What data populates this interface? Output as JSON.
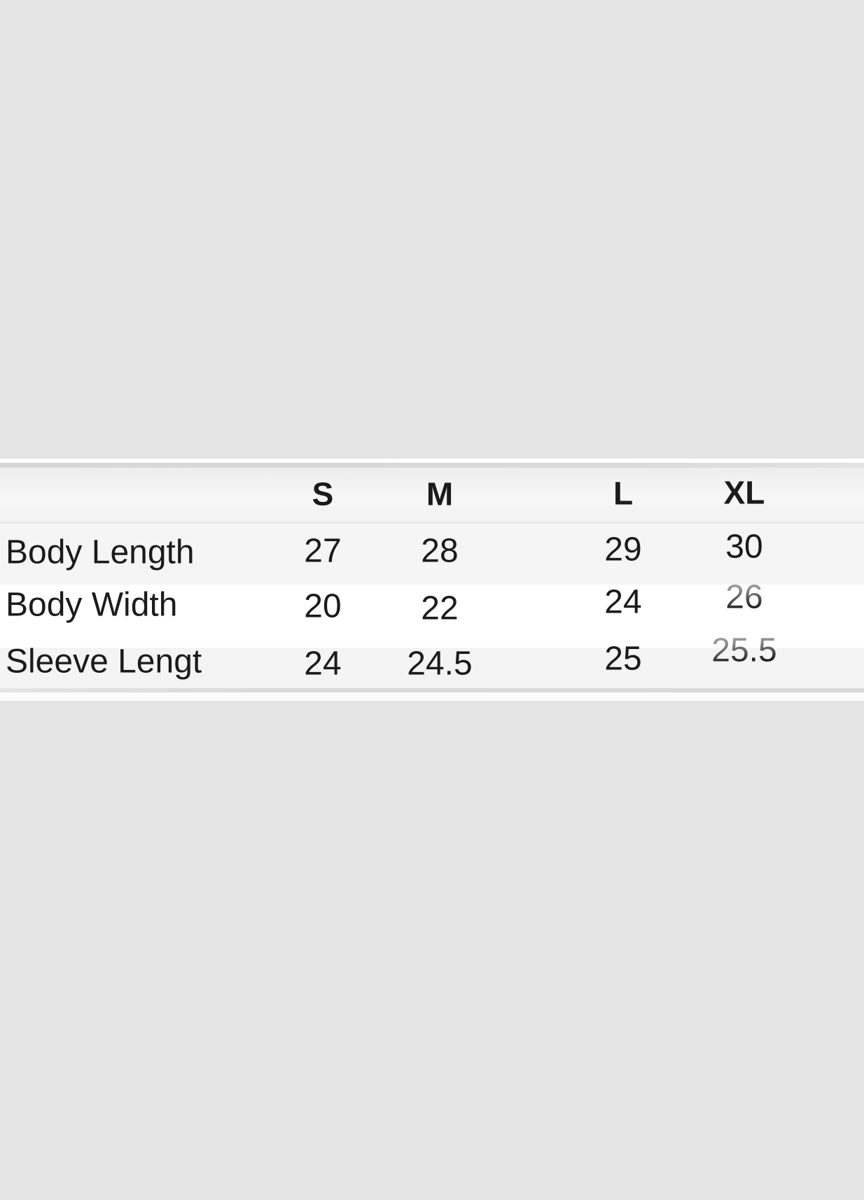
{
  "page": {
    "background_color": "#e4e4e4",
    "text_color": "#1b1b1b",
    "row_stripe_color": "#f5f5f6",
    "row_white_color": "#ffffff"
  },
  "size_chart": {
    "columns": [
      {
        "key": "s",
        "label": "S"
      },
      {
        "key": "m",
        "label": "M"
      },
      {
        "key": "l",
        "label": "L"
      },
      {
        "key": "xl",
        "label": "XL"
      }
    ],
    "rows": [
      {
        "label": "Body Length",
        "values": {
          "s": "27",
          "m": "28",
          "l": "29",
          "xl": "30"
        }
      },
      {
        "label": "Body Width",
        "values": {
          "s": "20",
          "m": "22",
          "l": "24",
          "xl": "26"
        }
      },
      {
        "label": "Sleeve Length",
        "values": {
          "s": "24",
          "m": "24.5",
          "l": "25",
          "xl": "25.5"
        }
      }
    ]
  },
  "chart_data": {
    "type": "table",
    "title": "",
    "columns": [
      "",
      "S",
      "M",
      "L",
      "XL"
    ],
    "rows": [
      [
        "Body Length",
        "27",
        "28",
        "29",
        "30"
      ],
      [
        "Body Width",
        "20",
        "22",
        "24",
        "26"
      ],
      [
        "Sleeve Length",
        "24",
        "24.5",
        "25",
        "25.5"
      ]
    ]
  }
}
